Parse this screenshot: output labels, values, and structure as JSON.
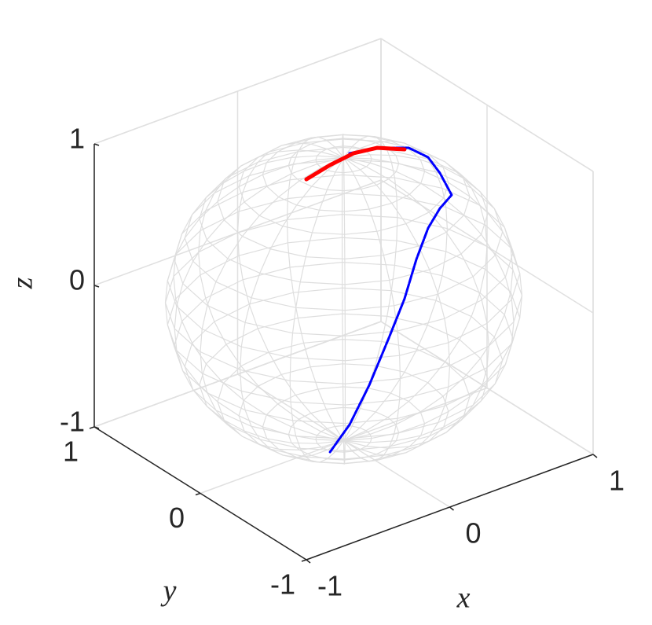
{
  "chart_data": {
    "type": "line3d",
    "xlabel": "x",
    "ylabel": "y",
    "zlabel": "z",
    "xlim": [
      -1,
      1
    ],
    "ylim": [
      -1,
      1
    ],
    "zlim": [
      -1,
      1
    ],
    "xticks": [
      -1,
      0,
      1
    ],
    "yticks": [
      -1,
      0,
      1
    ],
    "zticks": [
      -1,
      0,
      1
    ],
    "grid": true,
    "series": [
      {
        "color": "#0000ff",
        "x": [
          0.175,
          0.285,
          0.404,
          0.473,
          0.464,
          0.461,
          0.365,
          0.275,
          0.151,
          0.022,
          -0.075,
          -0.194,
          -0.258,
          -0.289
        ],
        "y": [
          0.182,
          0.071,
          -0.066,
          -0.156,
          -0.28,
          -0.395,
          -0.414,
          -0.425,
          -0.481,
          -0.544,
          -0.527,
          -0.503,
          -0.405,
          -0.262
        ],
        "z": [
          0.88,
          0.93,
          0.95,
          0.9,
          0.85,
          0.75,
          0.7,
          0.6,
          0.45,
          0.25,
          0.0,
          -0.3,
          -0.6,
          -0.85
        ]
      },
      {
        "color": "#ff0000",
        "x": [
          -0.068,
          0.066,
          0.193,
          0.285,
          0.375
        ],
        "y": [
          0.26,
          0.219,
          0.168,
          0.071,
          -0.067
        ],
        "z": [
          0.75,
          0.82,
          0.88,
          0.93,
          0.95
        ]
      }
    ]
  }
}
